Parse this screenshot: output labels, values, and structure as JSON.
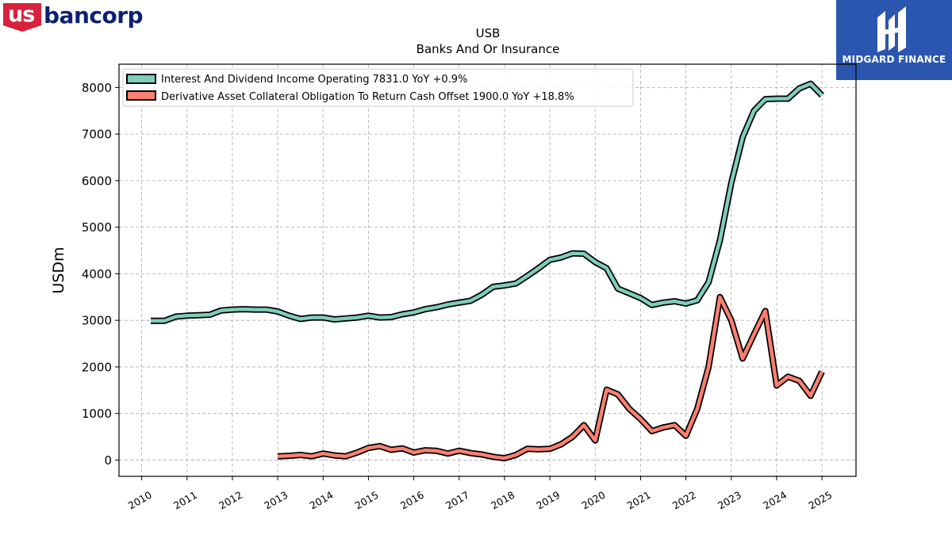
{
  "logos": {
    "left": {
      "prefix": "us",
      "rest": "bancorp"
    },
    "right": {
      "name": "MIDGARD FINANCE"
    }
  },
  "colors": {
    "interest_series": "#7fcdbb",
    "derivative_series": "#fa8072",
    "outline": "#000000",
    "grid": "#aaaaaa",
    "usb_red": "#d8213c",
    "usb_navy": "#0c2074",
    "midgard_blue": "#2b56b0"
  },
  "chart_data": {
    "type": "line",
    "title": "USB",
    "subtitle": "Banks And Or Insurance",
    "xlabel": "",
    "ylabel": "USDm",
    "xlim": [
      2009.5,
      2025.75
    ],
    "ylim": [
      -350,
      8500
    ],
    "x_ticks": [
      "2010",
      "2011",
      "2012",
      "2013",
      "2014",
      "2015",
      "2016",
      "2017",
      "2018",
      "2019",
      "2020",
      "2021",
      "2022",
      "2023",
      "2024",
      "2025"
    ],
    "y_ticks": [
      0,
      1000,
      2000,
      3000,
      4000,
      5000,
      6000,
      7000,
      8000
    ],
    "grid": true,
    "legend_position": "top-left",
    "series": [
      {
        "name": "Interest And Dividend Income Operating",
        "legend_label": "Interest And Dividend Income Operating  7831.0 YoY +0.9%",
        "points": [
          [
            2010.2,
            2990
          ],
          [
            2010.5,
            2990
          ],
          [
            2010.75,
            3080
          ],
          [
            2011.0,
            3100
          ],
          [
            2011.25,
            3110
          ],
          [
            2011.5,
            3120
          ],
          [
            2011.75,
            3210
          ],
          [
            2012.0,
            3230
          ],
          [
            2012.25,
            3240
          ],
          [
            2012.5,
            3230
          ],
          [
            2012.75,
            3230
          ],
          [
            2013.0,
            3190
          ],
          [
            2013.25,
            3100
          ],
          [
            2013.5,
            3030
          ],
          [
            2013.75,
            3060
          ],
          [
            2014.0,
            3060
          ],
          [
            2014.25,
            3020
          ],
          [
            2014.5,
            3040
          ],
          [
            2014.75,
            3060
          ],
          [
            2015.0,
            3100
          ],
          [
            2015.25,
            3060
          ],
          [
            2015.5,
            3070
          ],
          [
            2015.75,
            3130
          ],
          [
            2016.0,
            3170
          ],
          [
            2016.25,
            3240
          ],
          [
            2016.5,
            3280
          ],
          [
            2016.75,
            3340
          ],
          [
            2017.0,
            3380
          ],
          [
            2017.25,
            3420
          ],
          [
            2017.5,
            3550
          ],
          [
            2017.75,
            3720
          ],
          [
            2018.0,
            3750
          ],
          [
            2018.25,
            3790
          ],
          [
            2018.5,
            3950
          ],
          [
            2018.75,
            4120
          ],
          [
            2019.0,
            4300
          ],
          [
            2019.25,
            4350
          ],
          [
            2019.5,
            4440
          ],
          [
            2019.75,
            4430
          ],
          [
            2020.0,
            4250
          ],
          [
            2020.25,
            4120
          ],
          [
            2020.5,
            3680
          ],
          [
            2020.75,
            3580
          ],
          [
            2021.0,
            3480
          ],
          [
            2021.25,
            3330
          ],
          [
            2021.5,
            3380
          ],
          [
            2021.75,
            3410
          ],
          [
            2022.0,
            3360
          ],
          [
            2022.25,
            3430
          ],
          [
            2022.5,
            3820
          ],
          [
            2022.75,
            4720
          ],
          [
            2023.0,
            5950
          ],
          [
            2023.25,
            6930
          ],
          [
            2023.5,
            7500
          ],
          [
            2023.75,
            7750
          ],
          [
            2024.0,
            7760
          ],
          [
            2024.25,
            7760
          ],
          [
            2024.5,
            7980
          ],
          [
            2024.75,
            8080
          ],
          [
            2025.0,
            7831
          ]
        ]
      },
      {
        "name": "Derivative Asset Collateral Obligation To Return Cash Offset",
        "legend_label": "Derivative Asset Collateral Obligation To Return Cash Offset  1900.0 YoY +18.8%",
        "points": [
          [
            2013.0,
            80
          ],
          [
            2013.25,
            90
          ],
          [
            2013.5,
            110
          ],
          [
            2013.75,
            80
          ],
          [
            2014.0,
            140
          ],
          [
            2014.25,
            100
          ],
          [
            2014.5,
            80
          ],
          [
            2014.75,
            160
          ],
          [
            2015.0,
            260
          ],
          [
            2015.25,
            300
          ],
          [
            2015.5,
            220
          ],
          [
            2015.75,
            250
          ],
          [
            2016.0,
            160
          ],
          [
            2016.25,
            210
          ],
          [
            2016.5,
            200
          ],
          [
            2016.75,
            140
          ],
          [
            2017.0,
            200
          ],
          [
            2017.25,
            150
          ],
          [
            2017.5,
            120
          ],
          [
            2017.75,
            70
          ],
          [
            2018.0,
            40
          ],
          [
            2018.25,
            110
          ],
          [
            2018.5,
            240
          ],
          [
            2018.75,
            230
          ],
          [
            2019.0,
            240
          ],
          [
            2019.25,
            340
          ],
          [
            2019.5,
            500
          ],
          [
            2019.75,
            750
          ],
          [
            2020.0,
            420
          ],
          [
            2020.25,
            1510
          ],
          [
            2020.5,
            1410
          ],
          [
            2020.75,
            1100
          ],
          [
            2021.0,
            880
          ],
          [
            2021.25,
            620
          ],
          [
            2021.5,
            700
          ],
          [
            2021.75,
            750
          ],
          [
            2022.0,
            520
          ],
          [
            2022.25,
            1100
          ],
          [
            2022.5,
            2000
          ],
          [
            2022.75,
            3500
          ],
          [
            2023.0,
            3000
          ],
          [
            2023.25,
            2180
          ],
          [
            2023.5,
            2700
          ],
          [
            2023.75,
            3200
          ],
          [
            2024.0,
            1600
          ],
          [
            2024.25,
            1790
          ],
          [
            2024.5,
            1700
          ],
          [
            2024.75,
            1380
          ],
          [
            2025.0,
            1900
          ]
        ]
      }
    ]
  }
}
